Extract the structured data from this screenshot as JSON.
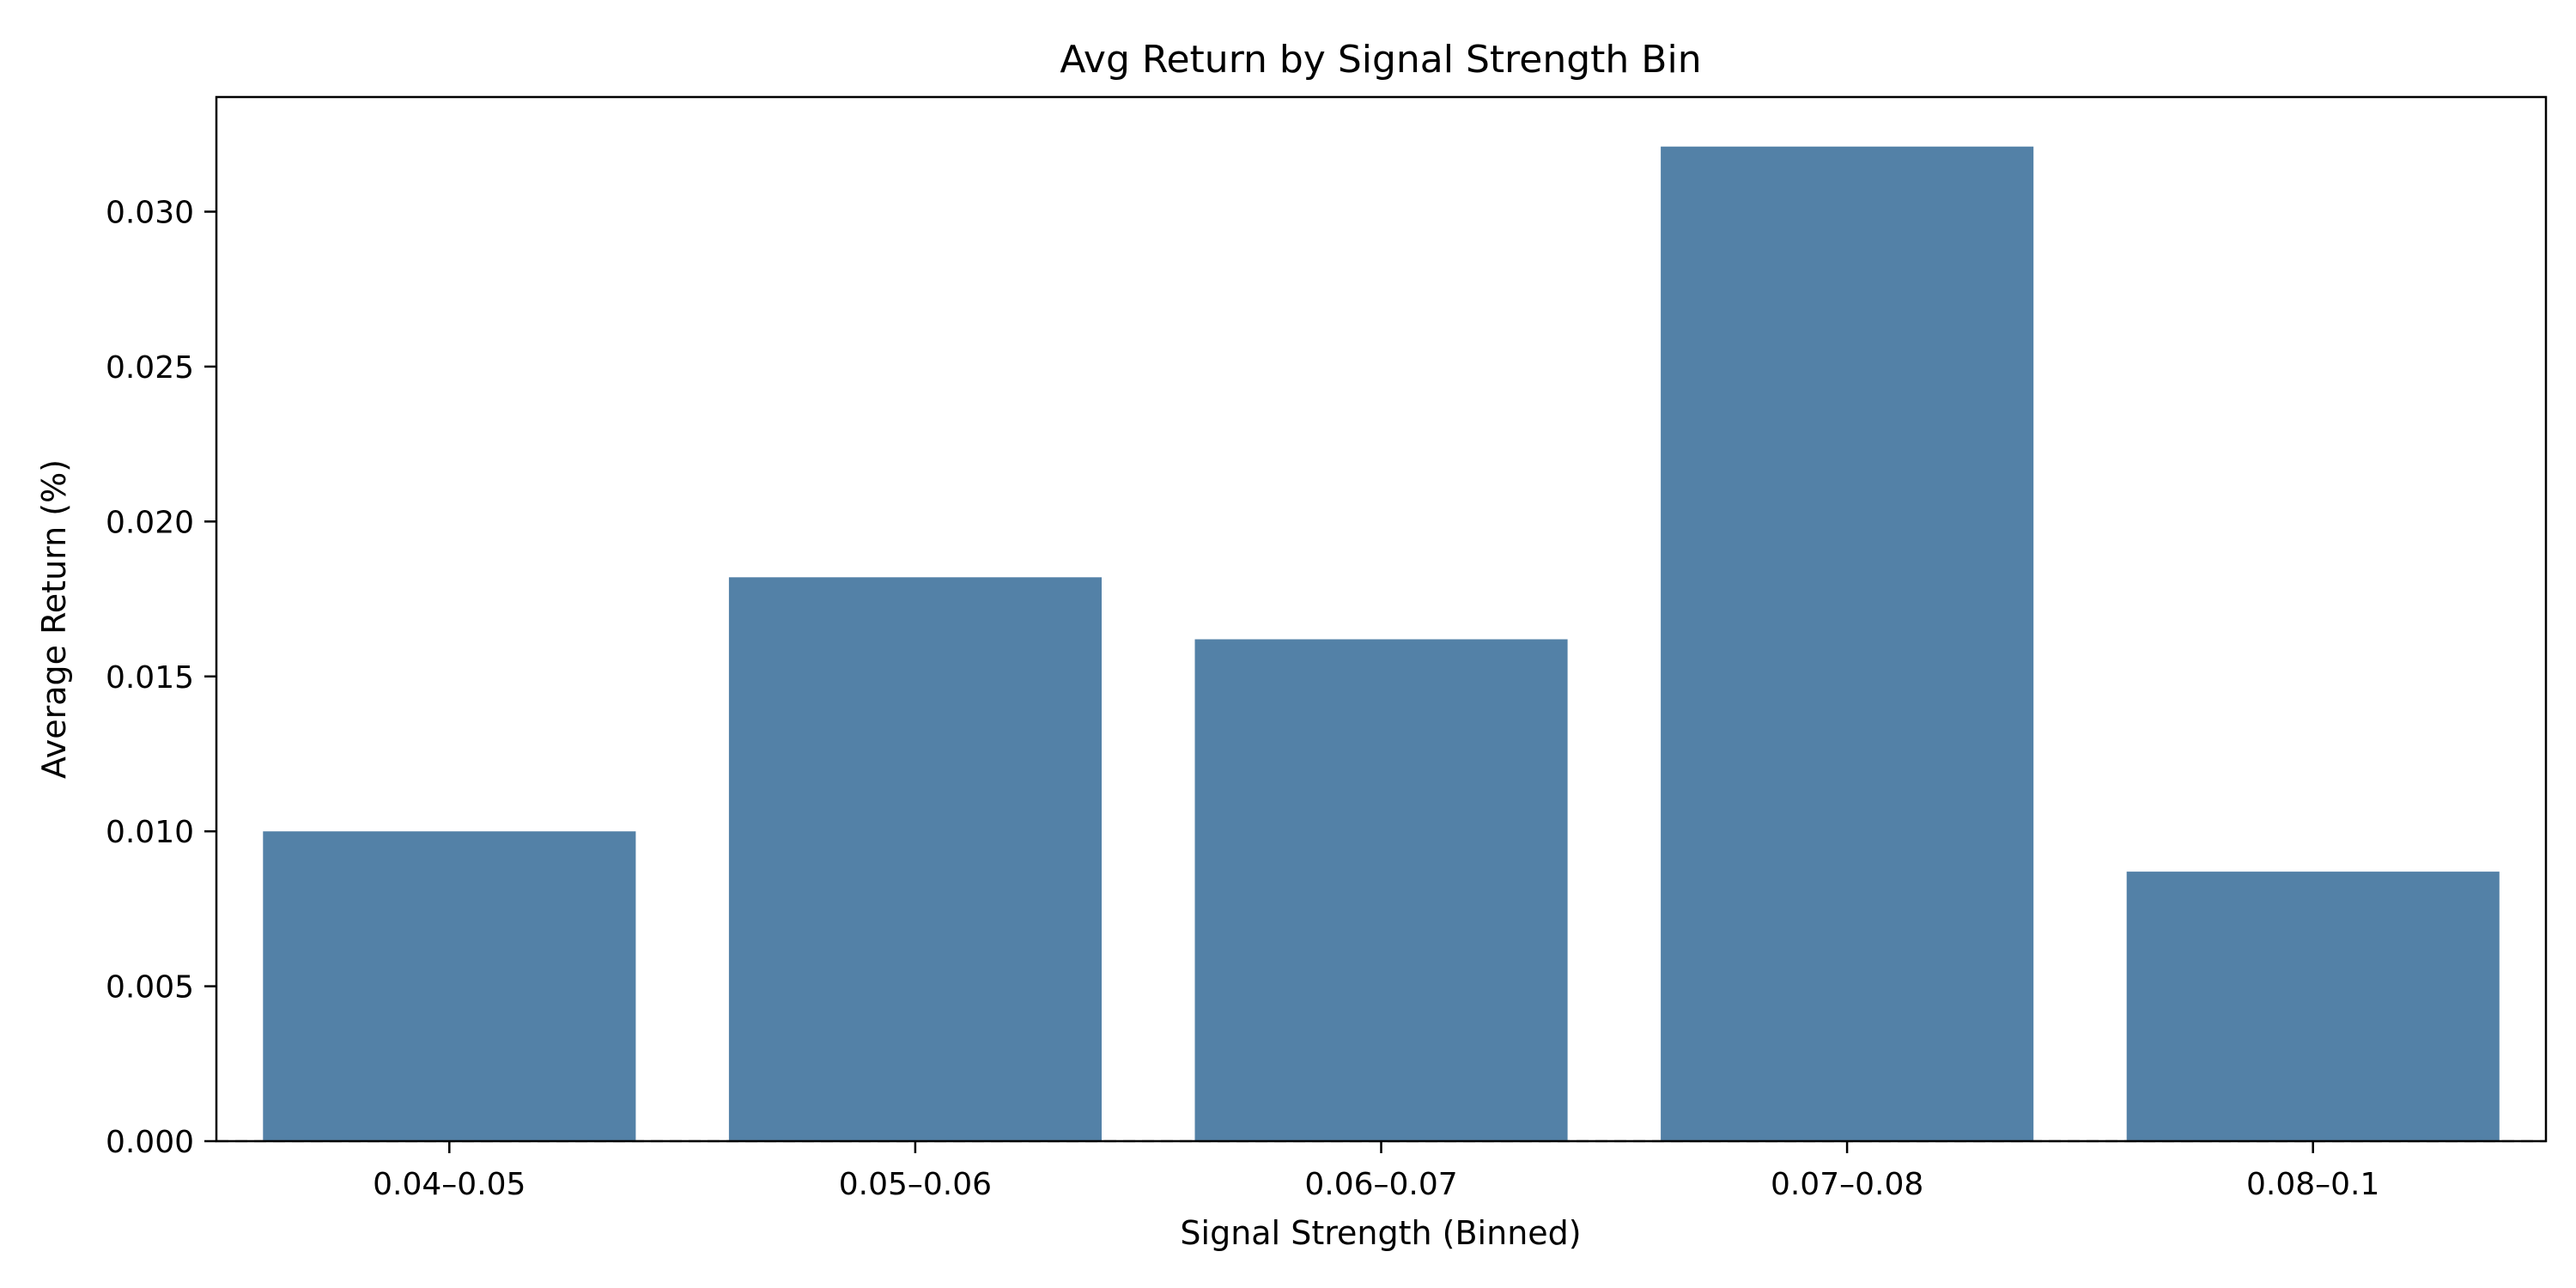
{
  "chart_data": {
    "type": "bar",
    "title": "Avg Return by Signal Strength Bin",
    "xlabel": "Signal Strength (Binned)",
    "ylabel": "Average Return (%)",
    "categories": [
      "0.04–0.05",
      "0.05–0.06",
      "0.06–0.07",
      "0.07–0.08",
      "0.08–0.1"
    ],
    "values": [
      0.01,
      0.0182,
      0.0162,
      0.0321,
      0.0087
    ],
    "ylim": [
      0,
      0.0337
    ],
    "yticks": [
      0.0,
      0.005,
      0.01,
      0.015,
      0.02,
      0.025,
      0.03
    ],
    "ytick_labels": [
      "0.000",
      "0.005",
      "0.010",
      "0.015",
      "0.020",
      "0.025",
      "0.030"
    ],
    "bar_color": "#5381a7",
    "reference_line": {
      "y": 0,
      "style": "dashed",
      "color": "#888888"
    },
    "grid": false,
    "legend": "none"
  }
}
